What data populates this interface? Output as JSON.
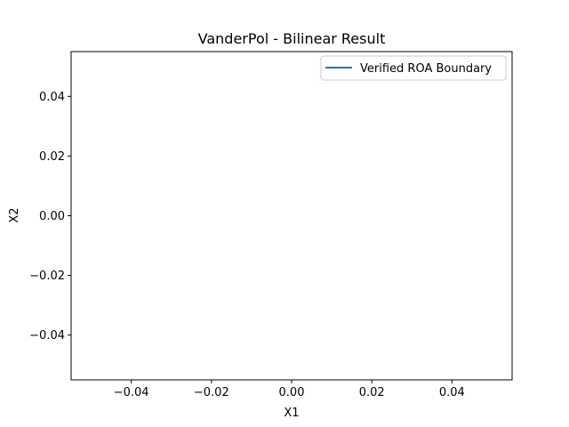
{
  "chart_data": {
    "type": "line",
    "title": "VanderPol - Bilinear Result",
    "xlabel": "X1",
    "ylabel": "X2",
    "xlim": [
      -0.055,
      0.055
    ],
    "ylim": [
      -0.055,
      0.055
    ],
    "xticks": [
      -0.04,
      -0.02,
      0.0,
      0.02,
      0.04
    ],
    "yticks": [
      -0.04,
      -0.02,
      0.0,
      0.02,
      0.04
    ],
    "xtick_labels": [
      "−0.04",
      "−0.02",
      "0.00",
      "0.02",
      "0.04"
    ],
    "ytick_labels": [
      "−0.04",
      "−0.02",
      "0.00",
      "0.02",
      "0.04"
    ],
    "grid": false,
    "legend_position": "top-right",
    "series": [
      {
        "name": "Verified ROA Boundary",
        "color": "#1f77b4",
        "x": [],
        "y": []
      }
    ]
  }
}
